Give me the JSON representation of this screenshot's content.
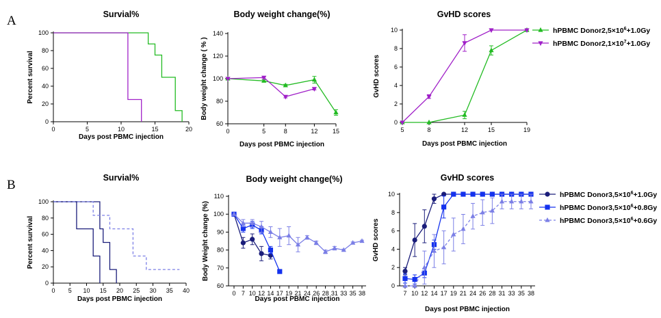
{
  "panel_labels": [
    "A",
    "B"
  ],
  "colors": {
    "green": "#22bb22",
    "purple": "#a020c8",
    "navy": "#1a1d7a",
    "blue": "#1432ee",
    "lightblue": "#7b7fe6",
    "axis": "#000000"
  },
  "chart_data": [
    {
      "id": "A1",
      "type": "line",
      "step": true,
      "title": "Survial%",
      "xlabel": "Days post PBMC injection",
      "ylabel": "Percent survival",
      "xlim": [
        0,
        20
      ],
      "ylim": [
        0,
        100
      ],
      "xticks": [
        0,
        5,
        10,
        15,
        20
      ],
      "yticks": [
        0,
        20,
        40,
        60,
        80,
        100
      ],
      "series": [
        {
          "name": "hPBMC Donor2,5×10⁶+1.0Gy",
          "color": "green",
          "dash": false,
          "x": [
            0,
            14,
            15,
            16,
            18,
            19
          ],
          "y": [
            100,
            87.5,
            75,
            50,
            12.5,
            0
          ]
        },
        {
          "name": "hPBMC Donor2,1×10⁷+1.0Gy",
          "color": "purple",
          "dash": false,
          "x": [
            0,
            11,
            13
          ],
          "y": [
            100,
            25,
            0
          ]
        }
      ]
    },
    {
      "id": "A2",
      "type": "line",
      "title": "Body weight change(%)",
      "xlabel": "Days post PBMC injection",
      "ylabel": "Body weight change ( % )",
      "xlim": [
        0,
        15
      ],
      "ylim": [
        60,
        140
      ],
      "xticks": [
        0,
        5,
        8,
        12,
        15
      ],
      "yticks": [
        60,
        80,
        100,
        120,
        140
      ],
      "series": [
        {
          "name": "hPBMC Donor2,5×10⁶+1.0Gy",
          "color": "green",
          "marker": "tri-up",
          "x": [
            0,
            5,
            8,
            12,
            15
          ],
          "y": [
            100,
            98,
            94,
            99,
            70
          ],
          "err": [
            0,
            1,
            1,
            3,
            2.5
          ]
        },
        {
          "name": "hPBMC Donor2,1×10⁷+1.0Gy",
          "color": "purple",
          "marker": "tri-down",
          "x": [
            0,
            5,
            8,
            12
          ],
          "y": [
            100,
            101,
            84,
            91
          ],
          "err": [
            0,
            1,
            1,
            1
          ]
        }
      ]
    },
    {
      "id": "A3",
      "type": "line",
      "title": "GvHD scores",
      "xlabel": "Days post PBMC injection",
      "ylabel": "GvHD scores",
      "xlim": [
        5,
        19
      ],
      "ylim": [
        0,
        10
      ],
      "xticks": [
        5,
        8,
        12,
        15,
        19
      ],
      "yticks": [
        0,
        2,
        4,
        6,
        8,
        10
      ],
      "series": [
        {
          "name": "hPBMC Donor2,5×10⁶+1.0Gy",
          "color": "green",
          "marker": "tri-up",
          "x": [
            5,
            8,
            12,
            15,
            19
          ],
          "y": [
            0,
            0,
            0.8,
            7.8,
            10
          ],
          "err": [
            0,
            0,
            0.4,
            0.5,
            0.1
          ]
        },
        {
          "name": "hPBMC Donor2,1×10⁷+1.0Gy",
          "color": "purple",
          "marker": "tri-down",
          "x": [
            5,
            8,
            12,
            15,
            19
          ],
          "y": [
            0,
            2.8,
            8.6,
            10,
            10
          ],
          "err": [
            0,
            0.2,
            0.9,
            0,
            0
          ]
        }
      ],
      "legend": [
        {
          "prefix": "hPBMC Donor2,5×10",
          "sup": "6",
          "suffix": "+1.0Gy",
          "color": "green",
          "marker": "tri-up",
          "dash": false
        },
        {
          "prefix": "hPBMC Donor2,1×10",
          "sup": "7",
          "suffix": "+1.0Gy",
          "color": "purple",
          "marker": "tri-down",
          "dash": false
        }
      ]
    },
    {
      "id": "B1",
      "type": "line",
      "step": true,
      "title": "Survial%",
      "xlabel": "Days post PBMC injection",
      "ylabel": "Percent survival",
      "xlim": [
        0,
        40
      ],
      "ylim": [
        0,
        100
      ],
      "xticks": [
        0,
        5,
        10,
        15,
        20,
        25,
        30,
        35,
        40
      ],
      "yticks": [
        0,
        20,
        40,
        60,
        80,
        100
      ],
      "series": [
        {
          "name": "hPBMC Donor3,5×10⁶+1.0Gy",
          "color": "navy",
          "dash": false,
          "x": [
            0,
            7,
            12,
            14
          ],
          "y": [
            100,
            66.7,
            33.3,
            0
          ]
        },
        {
          "name": "hPBMC Donor3,5×10⁶+0.8Gy",
          "color": "navy",
          "dash": false,
          "x": [
            0,
            14,
            15,
            17,
            19
          ],
          "y": [
            100,
            66.7,
            50,
            16.7,
            0
          ]
        },
        {
          "name": "hPBMC Donor3,5×10⁶+0.6Gy",
          "color": "lightblue",
          "dash": true,
          "x": [
            0,
            12,
            17,
            24,
            28,
            38
          ],
          "y": [
            100,
            83.3,
            66.7,
            33.3,
            16.7,
            16.7
          ]
        }
      ]
    },
    {
      "id": "B2",
      "type": "line",
      "title": "Body weight change(%)",
      "xlabel": "Days post PBMC injection",
      "ylabel": "Body Weight change (%)",
      "xlim": [
        0,
        38
      ],
      "ylim": [
        60,
        110
      ],
      "xticks": [
        0,
        7,
        10,
        12,
        14,
        17,
        19,
        21,
        24,
        26,
        28,
        31,
        33,
        35,
        38
      ],
      "yticks": [
        60,
        70,
        80,
        90,
        100,
        110
      ],
      "categorical_x": true,
      "series": [
        {
          "name": "hPBMC Donor3,5×10⁶+1.0Gy",
          "color": "navy",
          "marker": "circle",
          "x": [
            0,
            7,
            10,
            12,
            14
          ],
          "y": [
            100,
            84,
            86,
            78,
            77
          ],
          "err": [
            0,
            3,
            3,
            4,
            2
          ]
        },
        {
          "name": "hPBMC Donor3,5×10⁶+0.8Gy",
          "color": "blue",
          "marker": "square",
          "x": [
            0,
            7,
            10,
            12,
            14,
            17
          ],
          "y": [
            100,
            92,
            94,
            91,
            80,
            68
          ],
          "err": [
            0,
            2,
            2,
            2,
            2,
            0
          ]
        },
        {
          "name": "hPBMC Donor3,5×10⁶+0.6Gy",
          "color": "lightblue",
          "marker": "tri-up",
          "x": [
            0,
            7,
            10,
            12,
            14,
            17,
            19,
            21,
            24,
            26,
            28,
            31,
            33,
            35,
            38
          ],
          "y": [
            100,
            95,
            95,
            93,
            90,
            87,
            88,
            83,
            87,
            84,
            79,
            81,
            80,
            84,
            85
          ],
          "err": [
            0,
            2,
            2,
            3,
            3,
            5,
            5,
            4,
            1,
            1,
            1,
            1,
            0.5,
            0.5,
            0.5
          ]
        }
      ]
    },
    {
      "id": "B3",
      "type": "line",
      "title": "GvHD scores",
      "xlabel": "Days post PBMC injection",
      "ylabel": "GvHD scores",
      "xlim": [
        7,
        38
      ],
      "ylim": [
        0,
        10
      ],
      "xticks": [
        7,
        10,
        12,
        14,
        17,
        19,
        21,
        24,
        26,
        28,
        31,
        33,
        35,
        38
      ],
      "yticks": [
        0,
        2,
        4,
        6,
        8,
        10
      ],
      "categorical_x": true,
      "series": [
        {
          "name": "hPBMC Donor3,5×10⁶+1.0Gy",
          "color": "navy",
          "marker": "circle",
          "dash": false,
          "x": [
            7,
            10,
            12,
            14,
            17,
            19,
            21,
            24,
            26,
            28,
            31,
            33,
            35,
            38
          ],
          "y": [
            1.6,
            5,
            6.5,
            9.5,
            10,
            10,
            10,
            10,
            10,
            10,
            10,
            10,
            10,
            10
          ],
          "err": [
            0.4,
            1.8,
            1.8,
            0.5,
            0,
            0,
            0,
            0,
            0,
            0,
            0,
            0,
            0,
            0
          ]
        },
        {
          "name": "hPBMC Donor3,5×10⁶+0.8Gy",
          "color": "blue",
          "marker": "square",
          "dash": false,
          "x": [
            7,
            10,
            12,
            14,
            17,
            19,
            21,
            24,
            26,
            28,
            31,
            33,
            35,
            38
          ],
          "y": [
            0.8,
            0.7,
            1.4,
            4.5,
            8.6,
            10,
            10,
            10,
            10,
            10,
            10,
            10,
            10,
            10
          ],
          "err": [
            0.5,
            0.5,
            0.5,
            0.5,
            1.2,
            0,
            0,
            0,
            0,
            0,
            0,
            0,
            0,
            0
          ]
        },
        {
          "name": "hPBMC Donor3,5×10⁶+0.6Gy",
          "color": "lightblue",
          "marker": "tri-up",
          "dash": true,
          "x": [
            7,
            10,
            12,
            14,
            17,
            19,
            21,
            24,
            26,
            28,
            31,
            33,
            35,
            38
          ],
          "y": [
            0,
            0,
            2,
            3.8,
            4.2,
            5.6,
            6.2,
            7.6,
            8,
            8.2,
            9.2,
            9.2,
            9.2,
            9.2
          ],
          "err": [
            0,
            0,
            1.8,
            1.8,
            1.8,
            1.8,
            1.6,
            1.4,
            1.4,
            1.4,
            0.8,
            0.8,
            0.8,
            0.8
          ]
        }
      ],
      "legend": [
        {
          "prefix": "hPBMC Donor3,5×10",
          "sup": "6",
          "suffix": "+1.0Gy",
          "color": "navy",
          "marker": "circle",
          "dash": false
        },
        {
          "prefix": "hPBMC Donor3,5×10",
          "sup": "6",
          "suffix": "+0.8Gy",
          "color": "blue",
          "marker": "square",
          "dash": false
        },
        {
          "prefix": "hPBMC Donor3,5×10",
          "sup": "6",
          "suffix": "+0.6Gy",
          "color": "lightblue",
          "marker": "tri-up",
          "dash": true
        }
      ]
    }
  ]
}
